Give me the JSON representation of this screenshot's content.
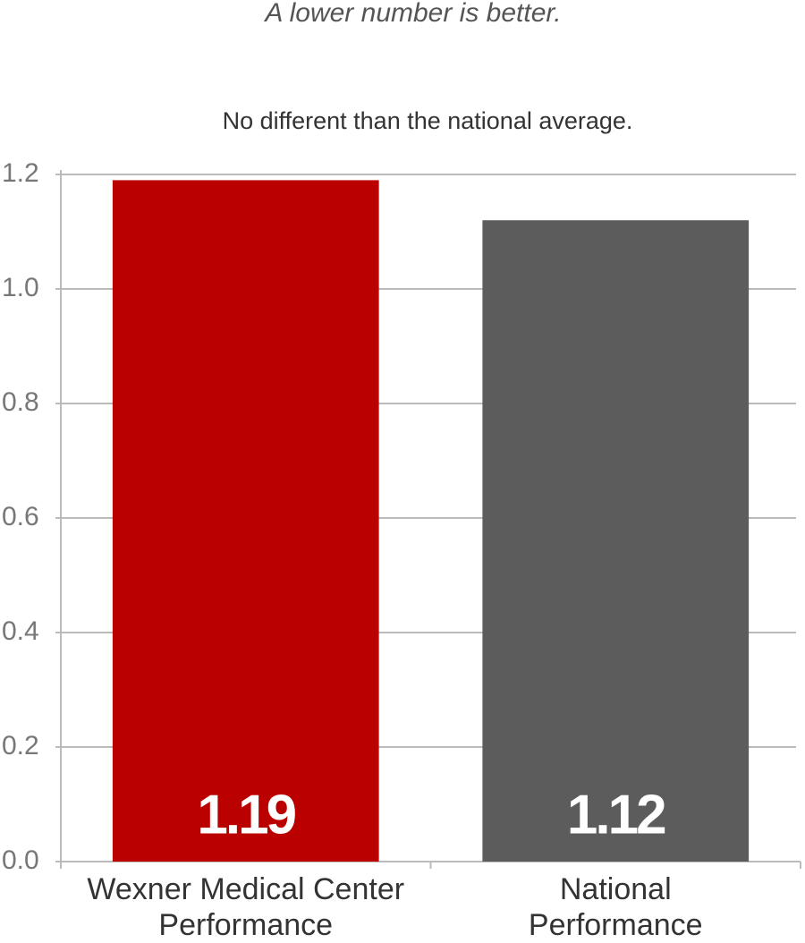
{
  "chart_data": {
    "type": "bar",
    "title": "A lower number is better.",
    "subtitle": "No different than the national average.",
    "categories": [
      "Wexner Medical Center Performance",
      "National Performance"
    ],
    "values": [
      1.19,
      1.12
    ],
    "colors": [
      "#bb0000",
      "#5c5c5c"
    ],
    "ylim": [
      0,
      1.2
    ],
    "yticks": [
      {
        "value": 0,
        "label": "0.0"
      },
      0.2,
      0.4,
      0.6,
      0.8,
      {
        "value": 1,
        "label": "1.0"
      },
      1.2
    ],
    "grid": true
  }
}
